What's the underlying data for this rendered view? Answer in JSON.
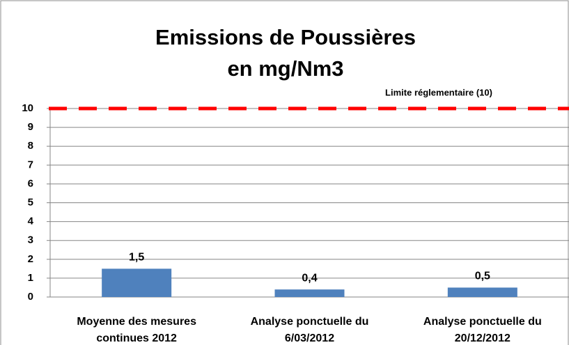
{
  "chart_data": {
    "type": "bar",
    "title": [
      "Emissions de Poussières",
      "en mg/Nm3"
    ],
    "categories": [
      "Moyenne des mesures continues 2012",
      "Analyse ponctuelle du 6/03/2012",
      "Analyse ponctuelle du 20/12/2012"
    ],
    "values": [
      1.5,
      0.4,
      0.5
    ],
    "value_labels": [
      "1,5",
      "0,4",
      "0,5"
    ],
    "color": "#4f81bd",
    "ylim": [
      0,
      10
    ],
    "yticks": [
      0,
      1,
      2,
      3,
      4,
      5,
      6,
      7,
      8,
      9,
      10
    ],
    "grid": true,
    "threshold": {
      "value": 10,
      "label": "Limite réglementaire (10)",
      "color": "#ff0000"
    }
  }
}
